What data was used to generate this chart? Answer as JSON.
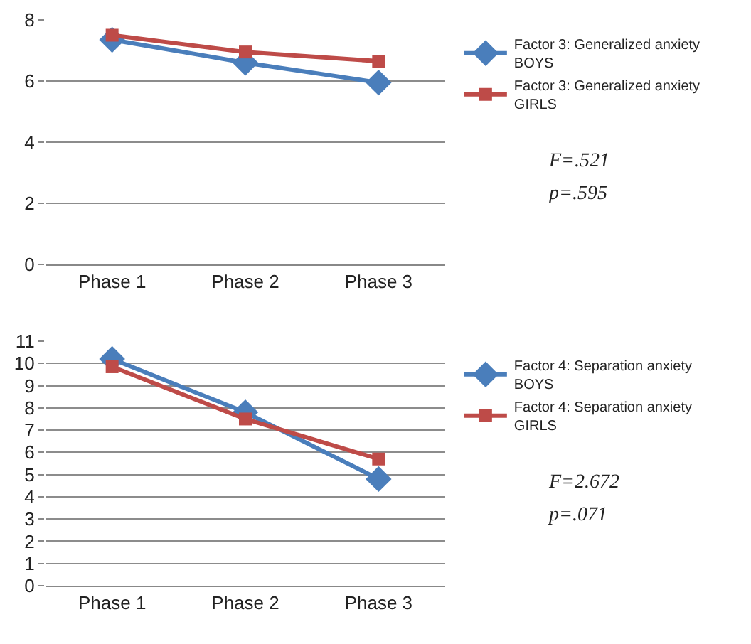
{
  "chart_data": [
    {
      "type": "line",
      "categories": [
        "Phase 1",
        "Phase 2",
        "Phase 3"
      ],
      "series": [
        {
          "name": "Factor 3: Generalized anxiety BOYS",
          "color": "#4a7ebb",
          "marker": "diamond",
          "values": [
            7.35,
            6.6,
            5.95
          ]
        },
        {
          "name": "Factor 3: Generalized anxiety GIRLS",
          "color": "#be4b48",
          "marker": "square",
          "values": [
            7.5,
            6.95,
            6.65
          ]
        }
      ],
      "ylim": [
        0,
        8
      ],
      "yticks": [
        0,
        2,
        4,
        6,
        8
      ],
      "grid": "y",
      "legend": "right",
      "annotations": [
        "F=.521",
        "p=.595"
      ]
    },
    {
      "type": "line",
      "categories": [
        "Phase 1",
        "Phase 2",
        "Phase 3"
      ],
      "series": [
        {
          "name": "Factor 4: Separation anxiety BOYS",
          "color": "#4a7ebb",
          "marker": "diamond",
          "values": [
            10.2,
            7.8,
            4.8
          ]
        },
        {
          "name": "Factor 4: Separation anxiety GIRLS",
          "color": "#be4b48",
          "marker": "square",
          "values": [
            9.85,
            7.5,
            5.7
          ]
        }
      ],
      "ylim": [
        0,
        11
      ],
      "yticks": [
        0,
        1,
        2,
        3,
        4,
        5,
        6,
        7,
        8,
        9,
        10,
        11
      ],
      "grid": "y",
      "legend": "right",
      "annotations": [
        "F=2.672",
        "p=.071"
      ]
    }
  ]
}
